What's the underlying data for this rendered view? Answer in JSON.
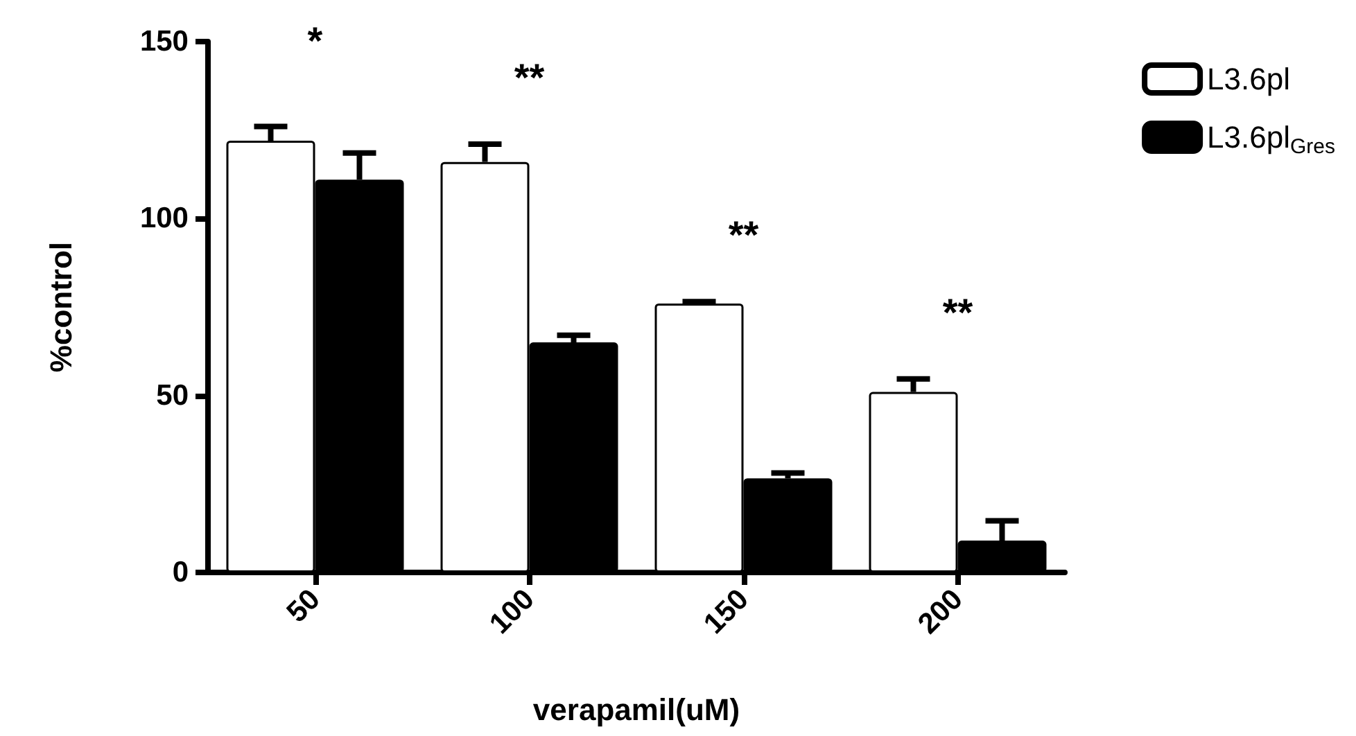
{
  "chart_data": {
    "type": "bar",
    "xlabel": "verapamil(uM)",
    "ylabel": "%control",
    "categories": [
      "50",
      "100",
      "150",
      "200"
    ],
    "series": [
      {
        "name": "L3.6pl",
        "color": "#ffffff",
        "values": [
          122,
          116,
          76,
          51
        ],
        "errors": [
          4,
          5,
          0.5,
          3.7
        ]
      },
      {
        "name": "L3.6pl$_{Gres}$",
        "color": "#000000",
        "values": [
          111,
          65,
          26.6,
          9
        ],
        "errors": [
          7.5,
          2,
          1.5,
          5.6
        ]
      }
    ],
    "ylim": [
      0,
      150
    ],
    "yticks": [
      0,
      50,
      100,
      150
    ],
    "grid": false,
    "legend": "top right",
    "annotations": [
      "*",
      "**",
      "**",
      "**"
    ]
  }
}
